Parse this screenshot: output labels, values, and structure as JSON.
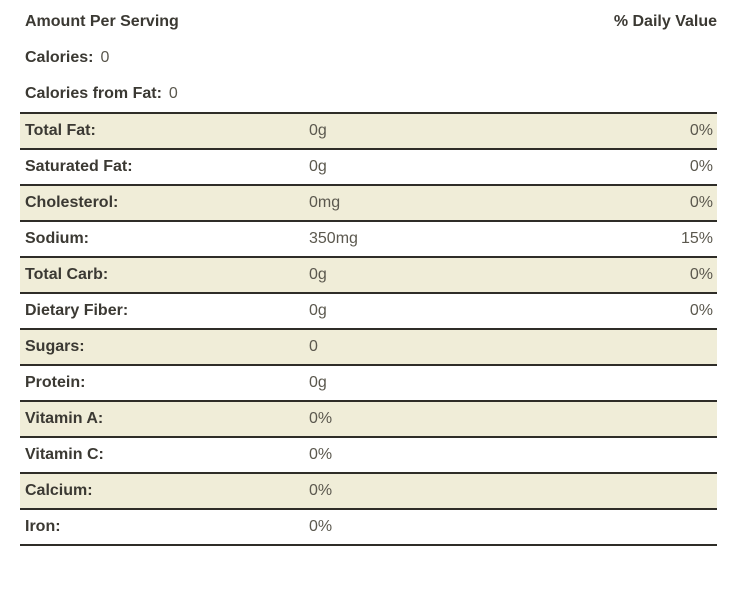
{
  "header": {
    "amount_per_serving": "Amount Per Serving",
    "daily_value_heading": "% Daily Value"
  },
  "summary": {
    "calories_label": "Calories:",
    "calories_value": "0",
    "calories_from_fat_label": "Calories from Fat:",
    "calories_from_fat_value": "0"
  },
  "table": {
    "rows": [
      {
        "label": "Total Fat:",
        "amount": "0g",
        "daily_value": "0%"
      },
      {
        "label": "Saturated Fat:",
        "amount": "0g",
        "daily_value": "0%"
      },
      {
        "label": "Cholesterol:",
        "amount": "0mg",
        "daily_value": "0%"
      },
      {
        "label": "Sodium:",
        "amount": "350mg",
        "daily_value": "15%"
      },
      {
        "label": "Total Carb:",
        "amount": "0g",
        "daily_value": "0%"
      },
      {
        "label": "Dietary Fiber:",
        "amount": "0g",
        "daily_value": "0%"
      },
      {
        "label": "Sugars:",
        "amount": "0",
        "daily_value": ""
      },
      {
        "label": "Protein:",
        "amount": "0g",
        "daily_value": ""
      },
      {
        "label": "Vitamin A:",
        "amount": "0%",
        "daily_value": ""
      },
      {
        "label": "Vitamin C:",
        "amount": "0%",
        "daily_value": ""
      },
      {
        "label": "Calcium:",
        "amount": "0%",
        "daily_value": ""
      },
      {
        "label": "Iron:",
        "amount": "0%",
        "daily_value": ""
      }
    ]
  },
  "colors": {
    "row_alt_background": "#f0edd8",
    "rule": "#2f2d28",
    "label_text": "#3b3933",
    "value_text": "#5b584e"
  }
}
